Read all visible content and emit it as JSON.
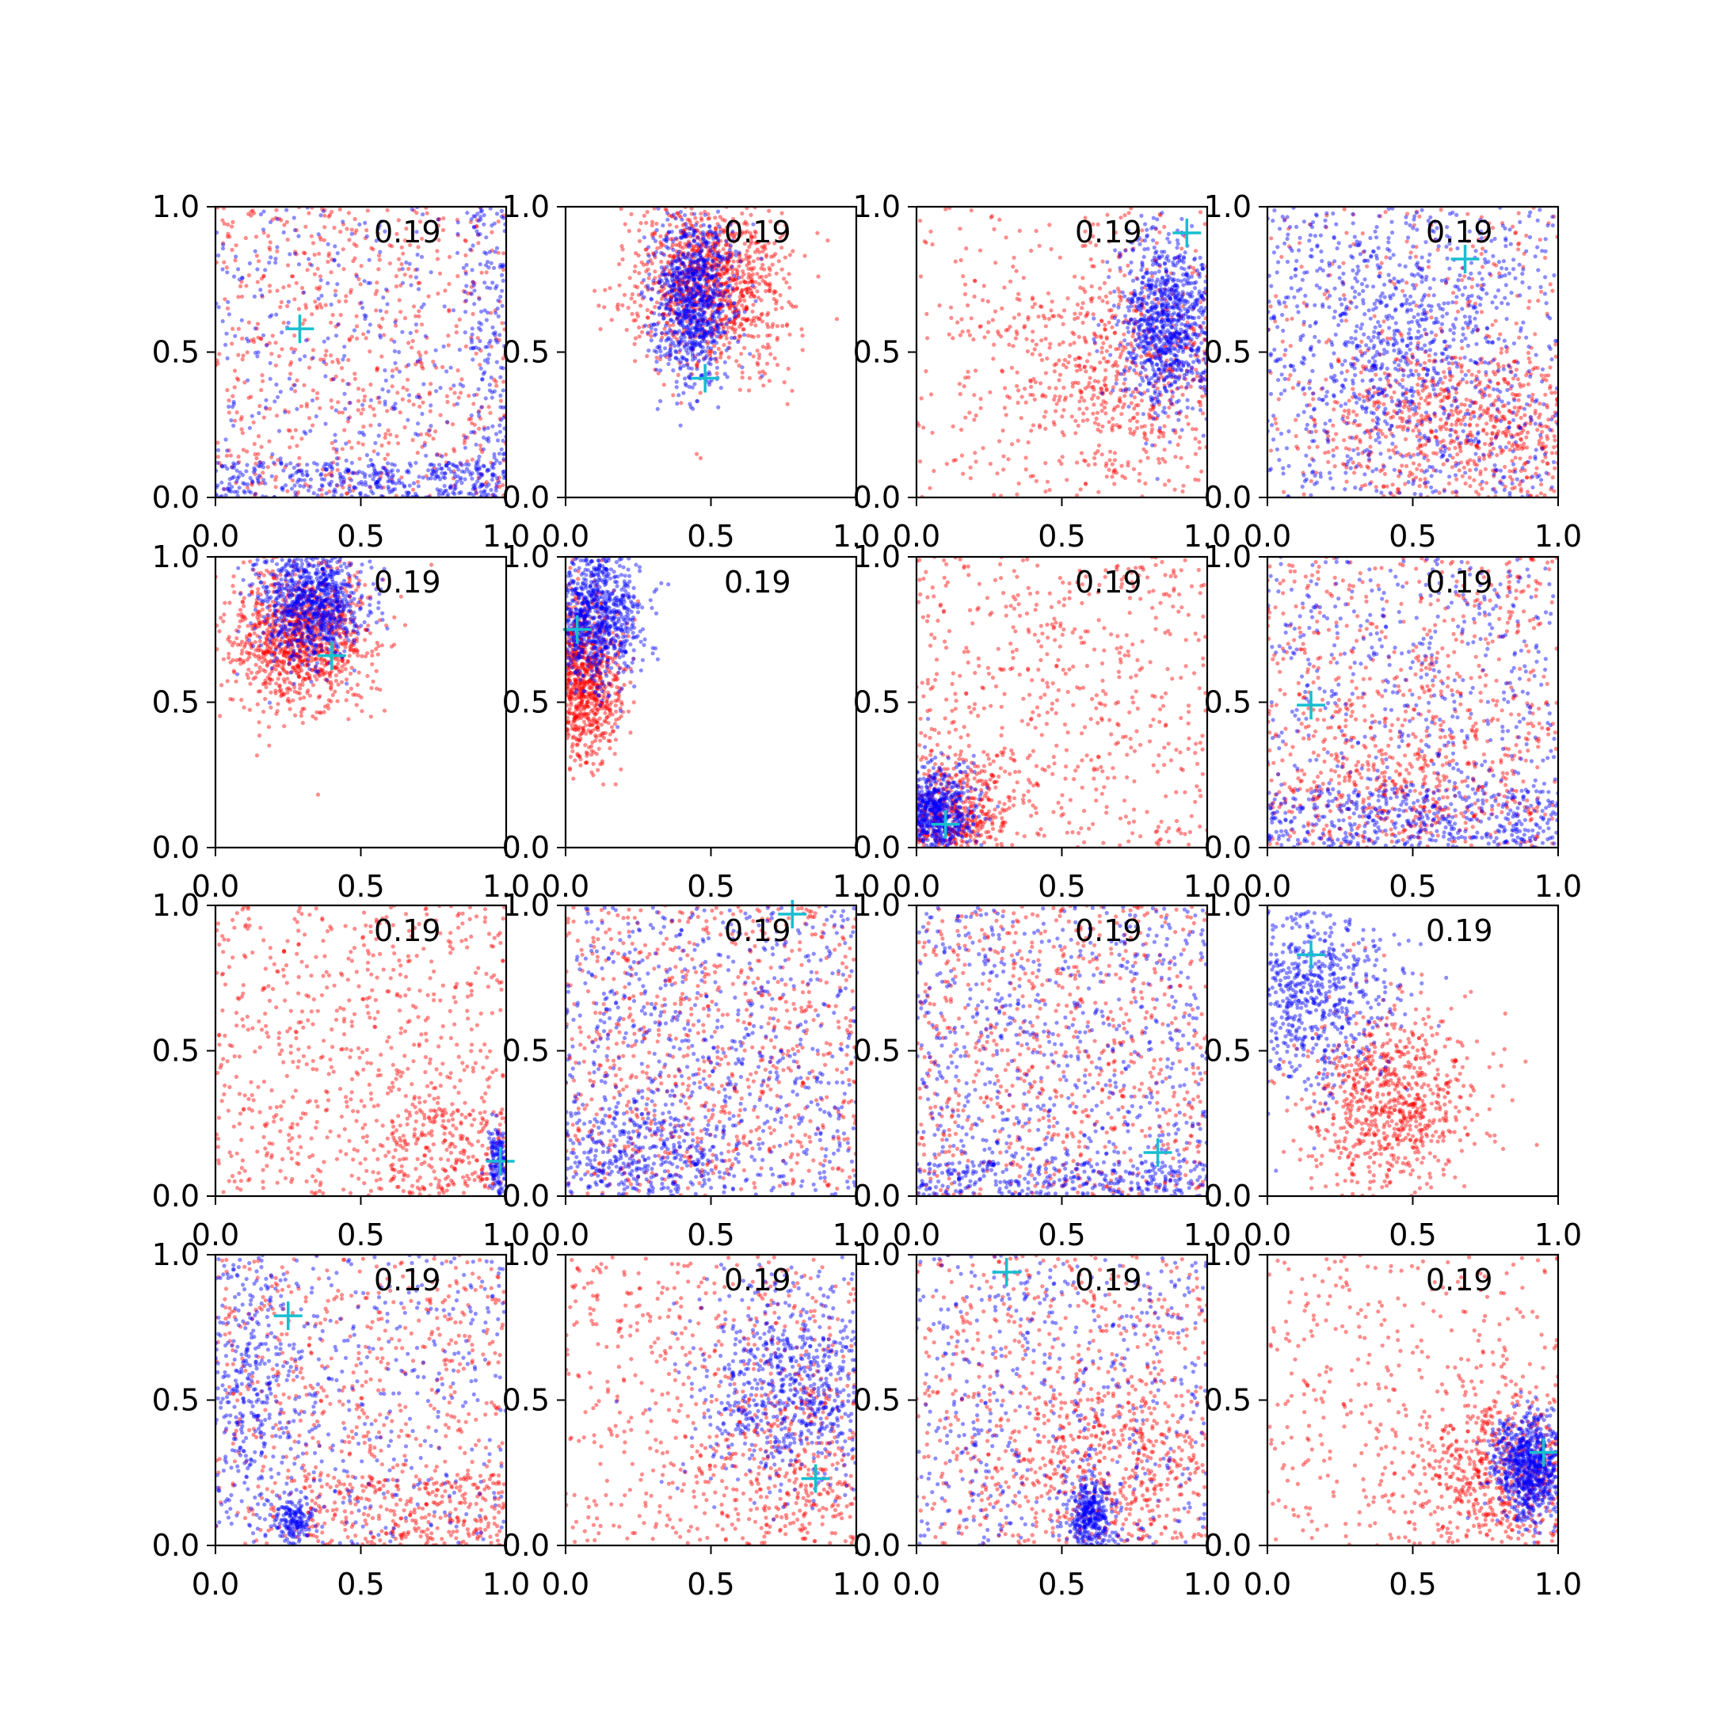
{
  "chart_data": {
    "type": "scatter",
    "grid": false,
    "xlim": [
      0,
      1
    ],
    "ylim": [
      0,
      1
    ],
    "tick_values": [
      0.0,
      0.5,
      1.0
    ],
    "tick_labels": [
      "0.0",
      "0.5",
      "1.0"
    ],
    "series_styles": [
      {
        "key": "red",
        "color": "#ff0000",
        "alpha": 0.45
      },
      {
        "key": "blue",
        "color": "#0000ff",
        "alpha": 0.45
      }
    ],
    "marker_color": "#17becf",
    "panels": [
      {
        "annotation": "0.19",
        "marker": [
          0.29,
          0.58
        ],
        "red": [
          {
            "mode": "uniform",
            "n": 650,
            "x": [
              0.0,
              1.0
            ],
            "y": [
              0.0,
              1.0
            ]
          }
        ],
        "blue": [
          {
            "mode": "uniform",
            "n": 350,
            "x": [
              0.0,
              1.0
            ],
            "y": [
              0.0,
              1.0
            ]
          },
          {
            "mode": "uniform",
            "n": 350,
            "x": [
              0.0,
              1.0
            ],
            "y": [
              0.0,
              0.12
            ]
          },
          {
            "mode": "uniform",
            "n": 150,
            "x": [
              0.88,
              1.0
            ],
            "y": [
              0.0,
              1.0
            ]
          }
        ]
      },
      {
        "annotation": "0.19",
        "marker": [
          0.48,
          0.41
        ],
        "red": [
          {
            "mode": "gauss",
            "n": 1100,
            "cx": 0.5,
            "cy": 0.75,
            "sx": 0.13,
            "sy": 0.15
          }
        ],
        "blue": [
          {
            "mode": "gauss",
            "n": 900,
            "cx": 0.44,
            "cy": 0.68,
            "sx": 0.07,
            "sy": 0.14
          }
        ]
      },
      {
        "annotation": "0.19",
        "marker": [
          0.93,
          0.91
        ],
        "red": [
          {
            "mode": "gauss",
            "n": 700,
            "cx": 0.75,
            "cy": 0.45,
            "sx": 0.25,
            "sy": 0.22
          },
          {
            "mode": "uniform",
            "n": 250,
            "x": [
              0.0,
              1.0
            ],
            "y": [
              0.0,
              1.0
            ]
          }
        ],
        "blue": [
          {
            "mode": "gauss",
            "n": 900,
            "cx": 0.86,
            "cy": 0.6,
            "sx": 0.08,
            "sy": 0.15
          }
        ]
      },
      {
        "annotation": "0.19",
        "marker": [
          0.68,
          0.82
        ],
        "red": [
          {
            "mode": "gauss",
            "n": 700,
            "cx": 0.68,
            "cy": 0.25,
            "sx": 0.25,
            "sy": 0.15
          },
          {
            "mode": "uniform",
            "n": 300,
            "x": [
              0.0,
              1.0
            ],
            "y": [
              0.0,
              1.0
            ]
          }
        ],
        "blue": [
          {
            "mode": "uniform",
            "n": 700,
            "x": [
              0.0,
              1.0
            ],
            "y": [
              0.0,
              1.0
            ]
          },
          {
            "mode": "gauss",
            "n": 400,
            "cx": 0.45,
            "cy": 0.55,
            "sx": 0.18,
            "sy": 0.2
          }
        ]
      },
      {
        "annotation": "0.19",
        "marker": [
          0.4,
          0.66
        ],
        "red": [
          {
            "mode": "gauss",
            "n": 1100,
            "cx": 0.28,
            "cy": 0.72,
            "sx": 0.12,
            "sy": 0.12
          }
        ],
        "blue": [
          {
            "mode": "gauss",
            "n": 900,
            "cx": 0.33,
            "cy": 0.85,
            "sx": 0.09,
            "sy": 0.1
          }
        ]
      },
      {
        "annotation": "0.19",
        "marker": [
          0.04,
          0.75
        ],
        "red": [
          {
            "mode": "gauss",
            "n": 1000,
            "cx": 0.05,
            "cy": 0.58,
            "sx": 0.07,
            "sy": 0.14
          }
        ],
        "blue": [
          {
            "mode": "gauss",
            "n": 900,
            "cx": 0.1,
            "cy": 0.8,
            "sx": 0.08,
            "sy": 0.12
          }
        ]
      },
      {
        "annotation": "0.19",
        "marker": [
          0.1,
          0.08
        ],
        "red": [
          {
            "mode": "gauss",
            "n": 500,
            "cx": 0.12,
            "cy": 0.12,
            "sx": 0.1,
            "sy": 0.1
          },
          {
            "mode": "uniform",
            "n": 600,
            "x": [
              0.0,
              1.0
            ],
            "y": [
              0.0,
              1.0
            ]
          }
        ],
        "blue": [
          {
            "mode": "gauss",
            "n": 700,
            "cx": 0.06,
            "cy": 0.12,
            "sx": 0.07,
            "sy": 0.08
          }
        ]
      },
      {
        "annotation": "0.19",
        "marker": [
          0.15,
          0.49
        ],
        "red": [
          {
            "mode": "uniform",
            "n": 650,
            "x": [
              0.0,
              1.0
            ],
            "y": [
              0.0,
              1.0
            ]
          },
          {
            "mode": "gauss",
            "n": 300,
            "cx": 0.45,
            "cy": 0.25,
            "sx": 0.2,
            "sy": 0.15
          }
        ],
        "blue": [
          {
            "mode": "uniform",
            "n": 500,
            "x": [
              0.0,
              1.0
            ],
            "y": [
              0.0,
              1.0
            ]
          },
          {
            "mode": "uniform",
            "n": 400,
            "x": [
              0.0,
              1.0
            ],
            "y": [
              0.0,
              0.2
            ]
          }
        ]
      },
      {
        "annotation": "0.19",
        "marker": [
          0.98,
          0.12
        ],
        "red": [
          {
            "mode": "uniform",
            "n": 700,
            "x": [
              0.0,
              1.0
            ],
            "y": [
              0.0,
              1.0
            ]
          },
          {
            "mode": "uniform",
            "n": 200,
            "x": [
              0.6,
              1.0
            ],
            "y": [
              0.0,
              0.3
            ]
          }
        ],
        "blue": [
          {
            "mode": "gauss",
            "n": 150,
            "cx": 0.97,
            "cy": 0.12,
            "sx": 0.02,
            "sy": 0.06
          }
        ]
      },
      {
        "annotation": "0.19",
        "marker": [
          0.78,
          0.97
        ],
        "red": [
          {
            "mode": "uniform",
            "n": 800,
            "x": [
              0.0,
              1.0
            ],
            "y": [
              0.0,
              1.0
            ]
          }
        ],
        "blue": [
          {
            "mode": "uniform",
            "n": 700,
            "x": [
              0.0,
              1.0
            ],
            "y": [
              0.0,
              1.0
            ]
          },
          {
            "mode": "gauss",
            "n": 400,
            "cx": 0.2,
            "cy": 0.12,
            "sx": 0.2,
            "sy": 0.1
          }
        ]
      },
      {
        "annotation": "0.19",
        "marker": [
          0.83,
          0.15
        ],
        "red": [
          {
            "mode": "uniform",
            "n": 750,
            "x": [
              0.0,
              1.0
            ],
            "y": [
              0.0,
              1.0
            ]
          }
        ],
        "blue": [
          {
            "mode": "uniform",
            "n": 700,
            "x": [
              0.0,
              1.0
            ],
            "y": [
              0.0,
              1.0
            ]
          },
          {
            "mode": "uniform",
            "n": 250,
            "x": [
              0.0,
              1.0
            ],
            "y": [
              0.0,
              0.12
            ]
          }
        ]
      },
      {
        "annotation": "0.19",
        "marker": [
          0.15,
          0.83
        ],
        "red": [
          {
            "mode": "gauss",
            "n": 800,
            "cx": 0.42,
            "cy": 0.32,
            "sx": 0.15,
            "sy": 0.17
          }
        ],
        "blue": [
          {
            "mode": "gauss",
            "n": 700,
            "cx": 0.15,
            "cy": 0.72,
            "sx": 0.14,
            "sy": 0.18
          }
        ]
      },
      {
        "annotation": "0.19",
        "marker": [
          0.25,
          0.79
        ],
        "red": [
          {
            "mode": "uniform",
            "n": 600,
            "x": [
              0.0,
              1.0
            ],
            "y": [
              0.0,
              1.0
            ]
          },
          {
            "mode": "uniform",
            "n": 250,
            "x": [
              0.3,
              1.0
            ],
            "y": [
              0.0,
              0.25
            ]
          }
        ],
        "blue": [
          {
            "mode": "uniform",
            "n": 450,
            "x": [
              0.0,
              1.0
            ],
            "y": [
              0.0,
              1.0
            ]
          },
          {
            "mode": "gauss",
            "n": 300,
            "cx": 0.1,
            "cy": 0.5,
            "sx": 0.1,
            "sy": 0.25
          },
          {
            "mode": "gauss",
            "n": 150,
            "cx": 0.27,
            "cy": 0.08,
            "sx": 0.03,
            "sy": 0.04
          }
        ]
      },
      {
        "annotation": "0.19",
        "marker": [
          0.86,
          0.23
        ],
        "red": [
          {
            "mode": "uniform",
            "n": 500,
            "x": [
              0.0,
              1.0
            ],
            "y": [
              0.0,
              1.0
            ]
          },
          {
            "mode": "gauss",
            "n": 400,
            "cx": 0.8,
            "cy": 0.3,
            "sx": 0.2,
            "sy": 0.2
          }
        ],
        "blue": [
          {
            "mode": "gauss",
            "n": 800,
            "cx": 0.8,
            "cy": 0.55,
            "sx": 0.18,
            "sy": 0.18
          }
        ]
      },
      {
        "annotation": "0.19",
        "marker": [
          0.31,
          0.94
        ],
        "red": [
          {
            "mode": "uniform",
            "n": 500,
            "x": [
              0.0,
              1.0
            ],
            "y": [
              0.0,
              1.0
            ]
          },
          {
            "mode": "gauss",
            "n": 500,
            "cx": 0.65,
            "cy": 0.3,
            "sx": 0.2,
            "sy": 0.18
          }
        ],
        "blue": [
          {
            "mode": "uniform",
            "n": 500,
            "x": [
              0.0,
              1.0
            ],
            "y": [
              0.0,
              1.0
            ]
          },
          {
            "mode": "gauss",
            "n": 350,
            "cx": 0.6,
            "cy": 0.1,
            "sx": 0.04,
            "sy": 0.07
          }
        ]
      },
      {
        "annotation": "0.19",
        "marker": [
          0.95,
          0.32
        ],
        "red": [
          {
            "mode": "uniform",
            "n": 400,
            "x": [
              0.0,
              1.0
            ],
            "y": [
              0.0,
              1.0
            ]
          },
          {
            "mode": "gauss",
            "n": 600,
            "cx": 0.8,
            "cy": 0.25,
            "sx": 0.15,
            "sy": 0.15
          }
        ],
        "blue": [
          {
            "mode": "gauss",
            "n": 800,
            "cx": 0.9,
            "cy": 0.27,
            "sx": 0.06,
            "sy": 0.09
          }
        ]
      }
    ]
  }
}
